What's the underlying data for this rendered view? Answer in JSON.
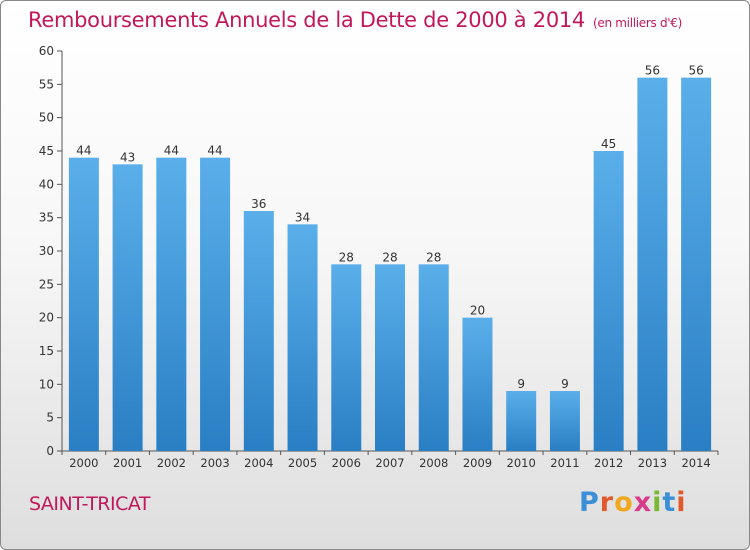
{
  "header": {
    "title": "Remboursements Annuels de la Dette de 2000 à 2014",
    "unit": "(en milliers d'€)"
  },
  "footer": {
    "city": "SAINT-TRICAT",
    "logo": "Proxiti"
  },
  "colors": {
    "title": "#c2185b",
    "bar_light": "#5aafea",
    "bar_dark": "#2a7fc4",
    "logo_letters": [
      "#3b8fd6",
      "#e05a2b",
      "#f2a81d",
      "#d93a8a",
      "#7ab833",
      "#3b8fd6",
      "#e05a2b"
    ]
  },
  "chart_data": {
    "type": "bar",
    "categories": [
      "2000",
      "2001",
      "2002",
      "2003",
      "2004",
      "2005",
      "2006",
      "2007",
      "2008",
      "2009",
      "2010",
      "2011",
      "2012",
      "2013",
      "2014"
    ],
    "values": [
      44,
      43,
      44,
      44,
      36,
      34,
      28,
      28,
      28,
      20,
      9,
      9,
      45,
      56,
      56
    ],
    "title": "Remboursements Annuels de la Dette de 2000 à 2014",
    "ylim": [
      0,
      60
    ],
    "yticks": [
      0,
      5,
      10,
      15,
      20,
      25,
      30,
      35,
      40,
      45,
      50,
      55,
      60
    ],
    "grid": false,
    "legend": "none"
  }
}
